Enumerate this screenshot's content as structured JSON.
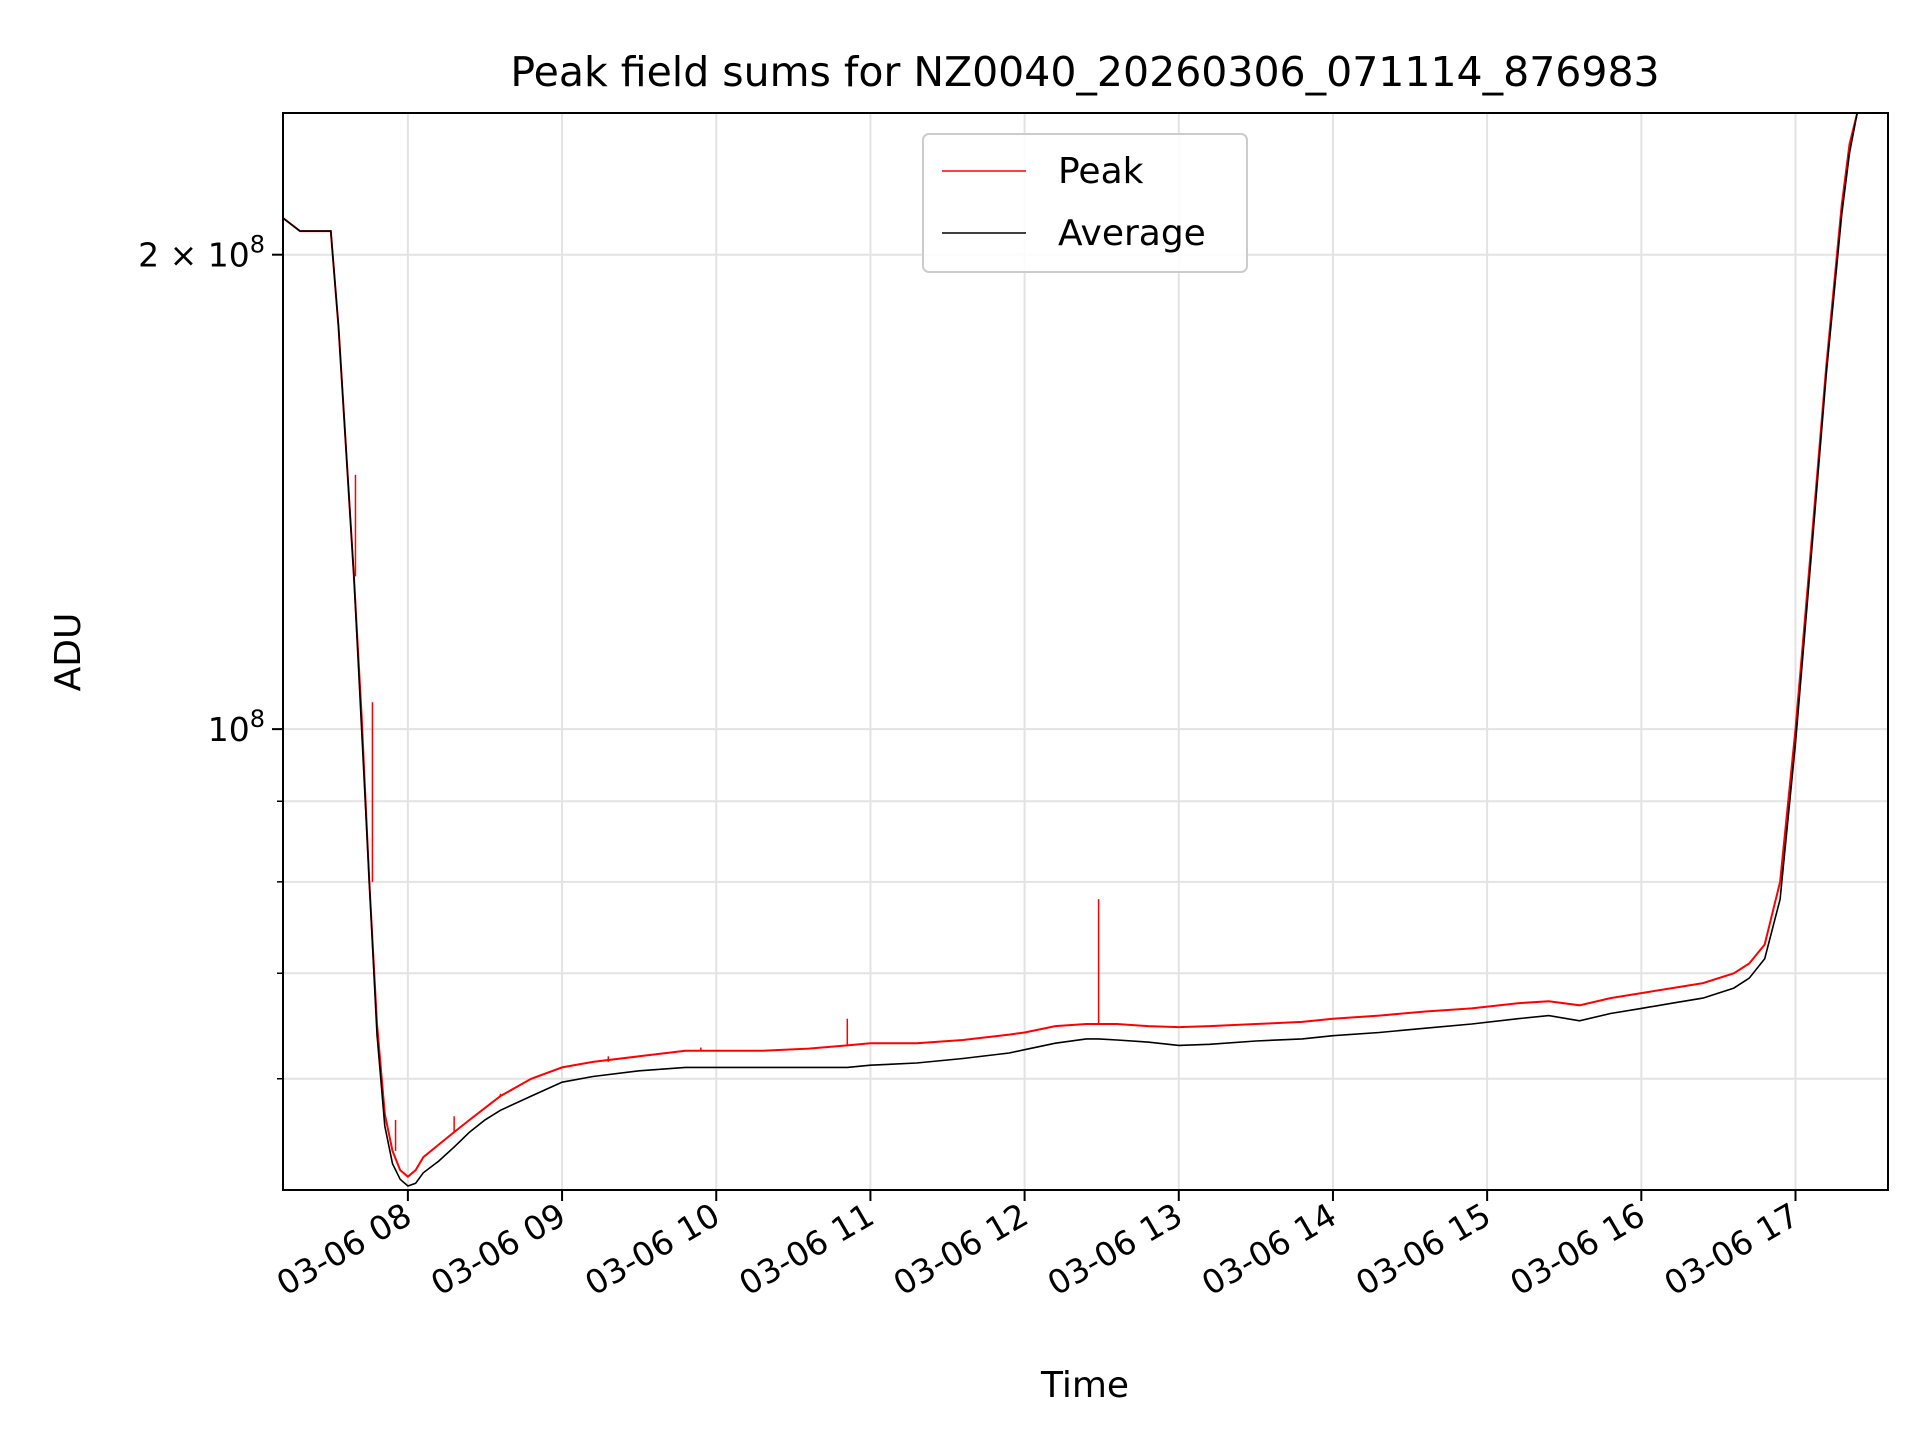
{
  "chart_data": {
    "type": "line",
    "title": "Peak field sums for NZ0040_20260306_071114_876983",
    "xlabel": "Time",
    "ylabel": "ADU",
    "yscale": "log",
    "xlim": [
      7.19,
      17.6
    ],
    "ylim": [
      51000000,
      246000000
    ],
    "grid": true,
    "legend": {
      "placement": "top-center"
    },
    "x_ticks": [
      {
        "value": 8,
        "label": "03-06 08"
      },
      {
        "value": 9,
        "label": "03-06 09"
      },
      {
        "value": 10,
        "label": "03-06 10"
      },
      {
        "value": 11,
        "label": "03-06 11"
      },
      {
        "value": 12,
        "label": "03-06 12"
      },
      {
        "value": 13,
        "label": "03-06 13"
      },
      {
        "value": 14,
        "label": "03-06 14"
      },
      {
        "value": 15,
        "label": "03-06 15"
      },
      {
        "value": 16,
        "label": "03-06 16"
      },
      {
        "value": 17,
        "label": "03-06 17"
      }
    ],
    "y_major_ticks": [
      {
        "value": 100000000,
        "base": "10",
        "exp": "8"
      },
      {
        "value": 200000000,
        "mant": "2 × ",
        "base": "10",
        "exp": "8"
      }
    ],
    "y_minor_ticks": [
      60000000,
      70000000,
      80000000,
      90000000
    ],
    "series": [
      {
        "name": "Peak",
        "color": "#ff0000",
        "x": [
          7.19,
          7.3,
          7.4,
          7.5,
          7.55,
          7.6,
          7.65,
          7.7,
          7.75,
          7.8,
          7.85,
          7.9,
          7.95,
          8.0,
          8.05,
          8.1,
          8.2,
          8.3,
          8.4,
          8.5,
          8.6,
          8.8,
          9.0,
          9.2,
          9.5,
          9.8,
          10.0,
          10.3,
          10.6,
          10.85,
          11.0,
          11.3,
          11.6,
          11.9,
          12.0,
          12.2,
          12.4,
          12.48,
          12.6,
          12.8,
          13.0,
          13.2,
          13.5,
          13.8,
          14.0,
          14.3,
          14.6,
          14.9,
          15.2,
          15.4,
          15.6,
          15.8,
          16.0,
          16.2,
          16.4,
          16.6,
          16.7,
          16.8,
          16.9,
          17.0,
          17.1,
          17.2,
          17.3,
          17.35,
          17.4,
          17.6
        ],
        "y": [
          211000000,
          207000000,
          207000000,
          207000000,
          180000000,
          150000000,
          125000000,
          102000000,
          80000000,
          65000000,
          57000000,
          54000000,
          52500000,
          52000000,
          52500000,
          53500000,
          54500000,
          55500000,
          56500000,
          57500000,
          58500000,
          60000000,
          61000000,
          61500000,
          62000000,
          62500000,
          62500000,
          62500000,
          62700000,
          63000000,
          63200000,
          63200000,
          63500000,
          64000000,
          64200000,
          64800000,
          65000000,
          65000000,
          65000000,
          64800000,
          64700000,
          64800000,
          65000000,
          65200000,
          65500000,
          65800000,
          66200000,
          66500000,
          67000000,
          67200000,
          66800000,
          67500000,
          68000000,
          68500000,
          69000000,
          70000000,
          71000000,
          73000000,
          80000000,
          100000000,
          130000000,
          170000000,
          215000000,
          235000000,
          246000000,
          246000000
        ],
        "spikes": [
          {
            "x": 7.66,
            "y": 145000000
          },
          {
            "x": 7.77,
            "y": 104000000
          },
          {
            "x": 7.92,
            "y": 56500000
          },
          {
            "x": 8.3,
            "y": 56800000
          },
          {
            "x": 8.6,
            "y": 58700000
          },
          {
            "x": 8.85,
            "y": 60000000
          },
          {
            "x": 9.3,
            "y": 62000000
          },
          {
            "x": 9.9,
            "y": 62800000
          },
          {
            "x": 10.85,
            "y": 65500000
          },
          {
            "x": 12.48,
            "y": 78000000
          }
        ]
      },
      {
        "name": "Average",
        "color": "#000000",
        "x": [
          7.19,
          7.3,
          7.4,
          7.5,
          7.55,
          7.6,
          7.65,
          7.7,
          7.75,
          7.8,
          7.85,
          7.9,
          7.95,
          8.0,
          8.05,
          8.1,
          8.2,
          8.3,
          8.4,
          8.5,
          8.6,
          8.8,
          9.0,
          9.2,
          9.5,
          9.8,
          10.0,
          10.3,
          10.6,
          10.85,
          11.0,
          11.3,
          11.6,
          11.9,
          12.0,
          12.2,
          12.4,
          12.48,
          12.6,
          12.8,
          13.0,
          13.2,
          13.5,
          13.8,
          14.0,
          14.3,
          14.6,
          14.9,
          15.2,
          15.4,
          15.6,
          15.8,
          16.0,
          16.2,
          16.4,
          16.6,
          16.7,
          16.8,
          16.9,
          17.0,
          17.1,
          17.2,
          17.3,
          17.35,
          17.4,
          17.6
        ],
        "y": [
          211000000,
          207000000,
          207000000,
          207000000,
          180000000,
          150000000,
          125000000,
          100000000,
          80000000,
          64000000,
          56000000,
          53000000,
          51800000,
          51300000,
          51500000,
          52300000,
          53200000,
          54300000,
          55500000,
          56500000,
          57300000,
          58500000,
          59700000,
          60200000,
          60700000,
          61000000,
          61000000,
          61000000,
          61000000,
          61000000,
          61200000,
          61400000,
          61800000,
          62300000,
          62600000,
          63200000,
          63600000,
          63600000,
          63500000,
          63300000,
          63000000,
          63100000,
          63400000,
          63600000,
          63900000,
          64200000,
          64600000,
          65000000,
          65500000,
          65800000,
          65300000,
          66000000,
          66500000,
          67000000,
          67500000,
          68500000,
          69500000,
          71500000,
          78000000,
          98000000,
          128000000,
          168000000,
          212000000,
          232000000,
          246000000,
          246000000
        ]
      }
    ]
  }
}
